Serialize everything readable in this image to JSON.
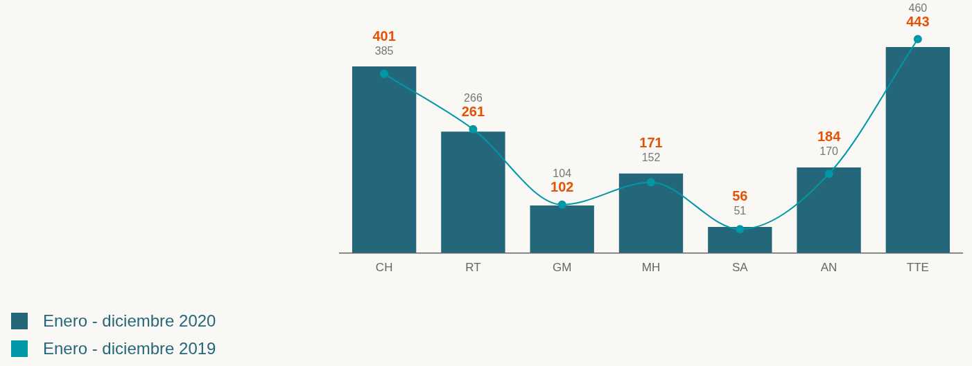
{
  "chart_data": {
    "type": "bar",
    "categories": [
      "CH",
      "RT",
      "GM",
      "MH",
      "SA",
      "AN",
      "TTE"
    ],
    "series": [
      {
        "name": "Enero - diciembre 2020",
        "color": "#24677a",
        "values": [
          401,
          261,
          102,
          171,
          56,
          184,
          443
        ]
      },
      {
        "name": "Enero - diciembre 2019",
        "type": "line",
        "color": "#0097a7",
        "values": [
          385,
          266,
          104,
          152,
          51,
          170,
          460
        ]
      }
    ],
    "data_labels": true,
    "legend": "bottom left",
    "marker": "circle"
  }
}
